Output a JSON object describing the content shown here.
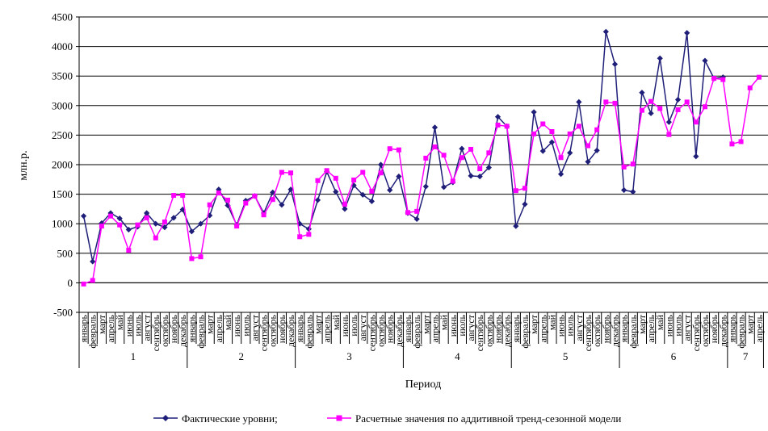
{
  "chart_data": {
    "type": "line",
    "xlabel": "Период",
    "ylabel": "млн.р.",
    "ylim": [
      -500,
      4500
    ],
    "yticks": [
      -500,
      0,
      500,
      1000,
      1500,
      2000,
      2500,
      3000,
      3500,
      4000,
      4500
    ],
    "grid": true,
    "legend_position": "bottom",
    "months": [
      "январь",
      "февраль",
      "март",
      "апрель",
      "май",
      "июнь",
      "июль",
      "август",
      "сентябрь",
      "октябрь",
      "ноябрь",
      "декабрь"
    ],
    "years": [
      "1",
      "2",
      "3",
      "4",
      "5",
      "6",
      "7"
    ],
    "series": [
      {
        "name": "Фактические уровни;",
        "color": "#1f1f7a",
        "marker": "diamond",
        "values": [
          1130,
          360,
          1010,
          1180,
          1090,
          900,
          950,
          1180,
          1000,
          940,
          1100,
          1240,
          870,
          1000,
          1140,
          1580,
          1310,
          980,
          1390,
          1470,
          1180,
          1530,
          1320,
          1580,
          1000,
          910,
          1400,
          1880,
          1540,
          1250,
          1650,
          1490,
          1380,
          2000,
          1570,
          1800,
          1180,
          1080,
          1630,
          2630,
          1620,
          1700,
          2270,
          1810,
          1800,
          1950,
          2810,
          2650,
          960,
          1330,
          2890,
          2230,
          2380,
          1840,
          2200,
          3060,
          2050,
          2240,
          4250,
          3700,
          1570,
          1540,
          3220,
          2870,
          3800,
          2720,
          3100,
          4230,
          2140,
          3760,
          3460,
          3480,
          null,
          null,
          null
        ]
      },
      {
        "name": "Расчетные значения по аддитивной тренд-сезонной модели",
        "color": "#ff00ff",
        "marker": "square",
        "values": [
          -20,
          40,
          960,
          1130,
          980,
          550,
          980,
          1100,
          760,
          1030,
          1480,
          1480,
          410,
          440,
          1320,
          1520,
          1400,
          960,
          1350,
          1470,
          1150,
          1410,
          1870,
          1860,
          780,
          820,
          1730,
          1900,
          1770,
          1330,
          1740,
          1870,
          1550,
          1860,
          2270,
          2250,
          1190,
          1210,
          2110,
          2300,
          2160,
          1720,
          2120,
          2260,
          1930,
          2200,
          2670,
          2650,
          1560,
          1600,
          2520,
          2690,
          2560,
          2120,
          2520,
          2650,
          2320,
          2590,
          3060,
          3040,
          1960,
          2010,
          2920,
          3070,
          2950,
          2510,
          2930,
          3060,
          2720,
          2980,
          3460,
          3440,
          2350,
          2390,
          3300,
          3480
        ]
      }
    ]
  }
}
